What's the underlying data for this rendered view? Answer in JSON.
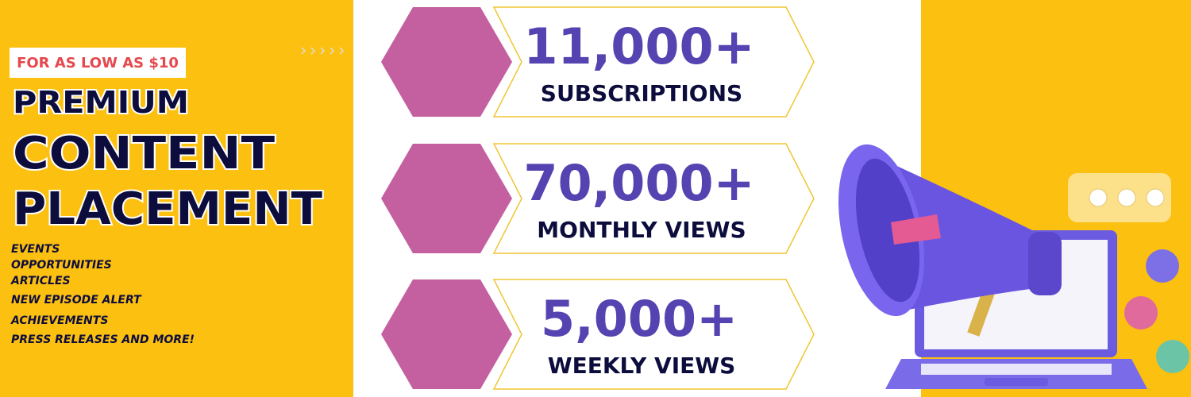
{
  "badge": "FOR AS LOW AS $10",
  "headline": [
    "PREMIUM",
    "CONTENT",
    "PLACEMENT"
  ],
  "features": [
    "EVENTS",
    "OPPORTUNITIES",
    "ARTICLES",
    "NEW EPISODE ALERT",
    "ACHIEVEMENTS",
    "PRESS RELEASES AND MORE!"
  ],
  "stats": [
    {
      "value": "11,000+",
      "label": "SUBSCRIPTIONS"
    },
    {
      "value": "70,000+",
      "label": "MONTHLY VIEWS"
    },
    {
      "value": "5,000+",
      "label": "WEEKLY VIEWS"
    }
  ]
}
